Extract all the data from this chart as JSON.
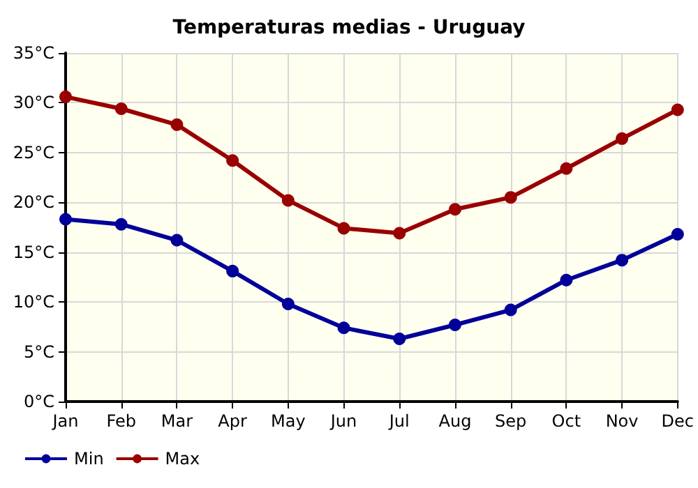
{
  "chart_data": {
    "type": "line",
    "title": "Temperaturas medias - Uruguay",
    "categories": [
      "Jan",
      "Feb",
      "Mar",
      "Apr",
      "May",
      "Jun",
      "Jul",
      "Aug",
      "Sep",
      "Oct",
      "Nov",
      "Dec"
    ],
    "series": [
      {
        "name": "Min",
        "color": "#000099",
        "values": [
          18.3,
          17.8,
          16.2,
          13.1,
          9.8,
          7.4,
          6.3,
          7.7,
          9.2,
          12.2,
          14.2,
          16.8
        ]
      },
      {
        "name": "Max",
        "color": "#990000",
        "values": [
          30.6,
          29.4,
          27.8,
          24.2,
          20.2,
          17.4,
          16.9,
          19.3,
          20.5,
          23.4,
          26.4,
          29.3
        ]
      }
    ],
    "ylim": [
      0,
      35
    ],
    "yticks": [
      {
        "value": 0,
        "label": "0°C"
      },
      {
        "value": 5,
        "label": "5°C"
      },
      {
        "value": 10,
        "label": "10°C"
      },
      {
        "value": 15,
        "label": "15°C"
      },
      {
        "value": 20,
        "label": "20°C"
      },
      {
        "value": 25,
        "label": "25°C"
      },
      {
        "value": 30,
        "label": "30°C"
      },
      {
        "value": 35,
        "label": "35°C"
      }
    ],
    "grid": true,
    "legend": "bottom left",
    "marker": "circle",
    "line_style": "solid"
  }
}
